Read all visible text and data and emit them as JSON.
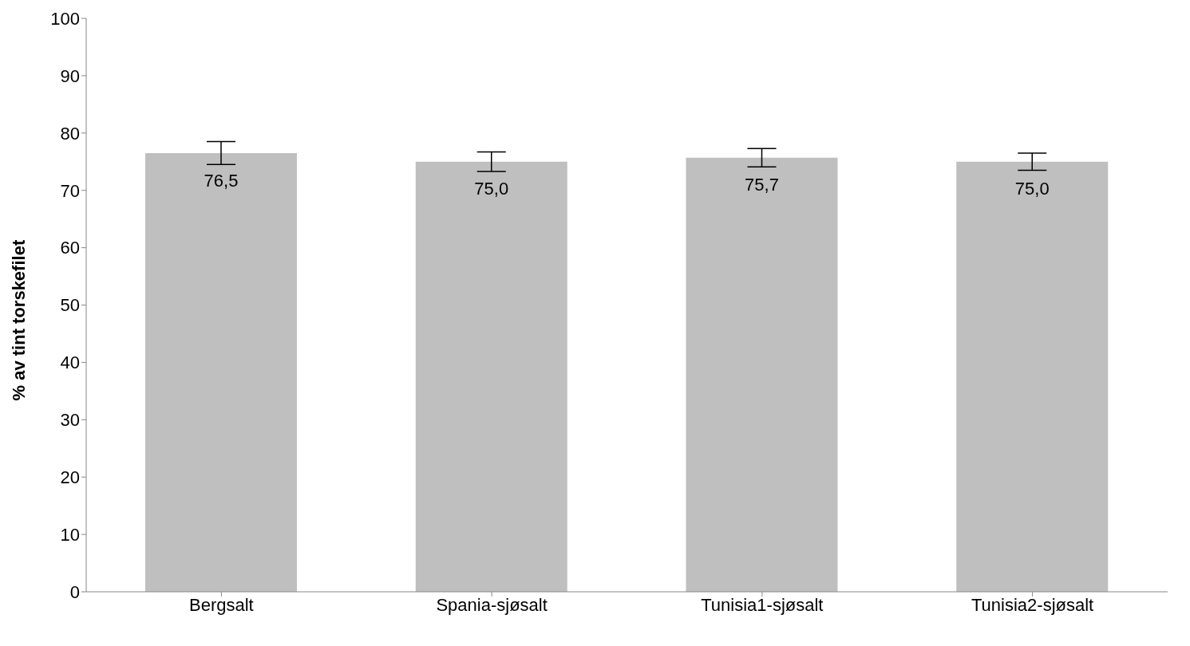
{
  "chart_data": {
    "type": "bar",
    "ylabel": "% av tint torskefilet",
    "categories": [
      "Bergsalt",
      "Spania-sjøsalt",
      "Tunisia1-sjøsalt",
      "Tunisia2-sjøsalt"
    ],
    "values": [
      76.5,
      75.0,
      75.7,
      75.0
    ],
    "value_labels": [
      "76,5",
      "75,0",
      "75,7",
      "75,0"
    ],
    "errors": [
      2.0,
      1.7,
      1.6,
      1.5
    ],
    "color": "#bfbfbf",
    "ylim": [
      0,
      100
    ],
    "yticks": [
      0,
      10,
      20,
      30,
      40,
      50,
      60,
      70,
      80,
      90,
      100
    ],
    "grid": false,
    "legend": false
  }
}
